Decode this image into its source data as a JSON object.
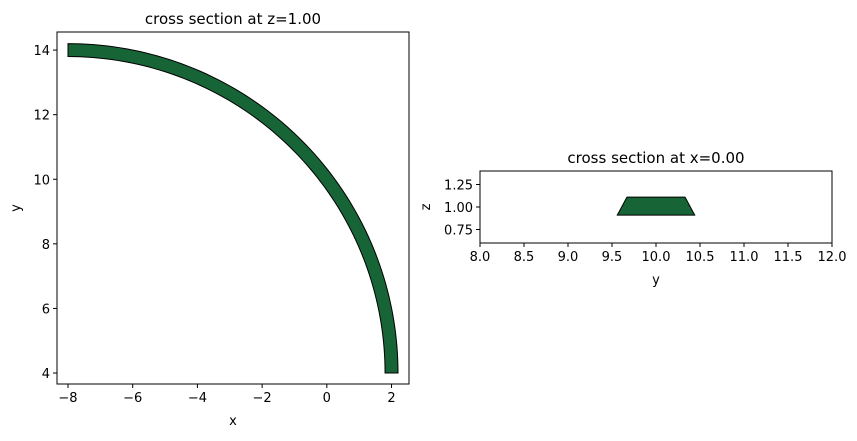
{
  "chart_data": [
    {
      "type": "shape",
      "title": "cross section at z=1.00",
      "xlabel": "x",
      "ylabel": "y",
      "xlim": [
        -8.34,
        2.54
      ],
      "ylim": [
        3.66,
        14.56
      ],
      "xticks": [
        {
          "value": -8,
          "label": "−8"
        },
        {
          "value": -6,
          "label": "−6"
        },
        {
          "value": -4,
          "label": "−4"
        },
        {
          "value": -2,
          "label": "−2"
        },
        0,
        2
      ],
      "yticks": [
        4,
        6,
        8,
        10,
        12,
        14
      ],
      "shapes": [
        {
          "kind": "annular-sector",
          "center": [
            -8,
            4
          ],
          "inner_radius": 9.8,
          "outer_radius": 10.2,
          "start_angle": 0,
          "end_angle": 90,
          "color": "#176437"
        }
      ]
    },
    {
      "type": "shape",
      "title": "cross section at x=0.00",
      "xlabel": "y",
      "ylabel": "z",
      "xlim": [
        8,
        12
      ],
      "ylim": [
        0.6,
        1.4
      ],
      "xticks": [
        {
          "value": 8,
          "label": "8.0"
        },
        8.5,
        {
          "value": 9,
          "label": "9.0"
        },
        9.5,
        {
          "value": 10,
          "label": "10.0"
        },
        10.5,
        {
          "value": 11,
          "label": "11.0"
        },
        11.5,
        {
          "value": 12,
          "label": "12.0"
        }
      ],
      "yticks": [
        0.75,
        {
          "value": 1,
          "label": "1.00"
        },
        1.25
      ],
      "shapes": [
        {
          "kind": "polygon",
          "points": [
            [
              9.56,
              0.91
            ],
            [
              10.44,
              0.91
            ],
            [
              10.33,
              1.11
            ],
            [
              9.67,
              1.11
            ]
          ],
          "color": "#176437"
        }
      ]
    }
  ]
}
